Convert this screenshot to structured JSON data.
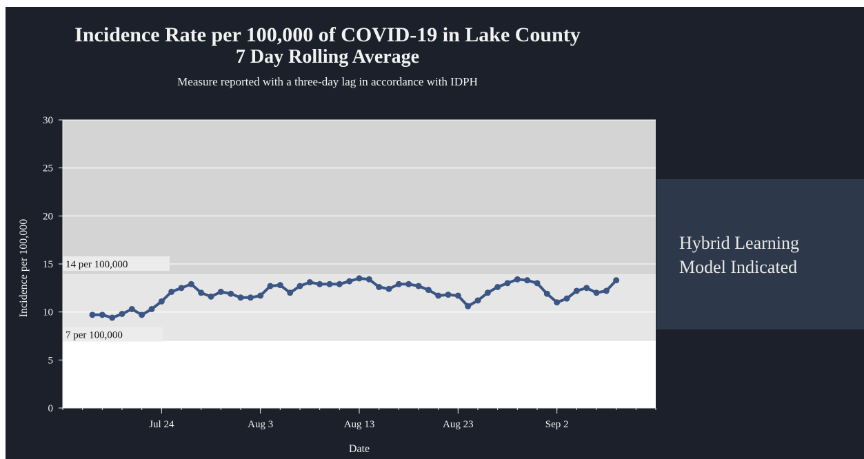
{
  "title": {
    "line1": "Incidence Rate per 100,000 of COVID-19 in Lake County",
    "line2": "7 Day Rolling Average",
    "subtitle": "Measure reported with a three-day lag in accordance with IDPH"
  },
  "side_panel": {
    "text": "Hybrid Learning\nModel Indicated"
  },
  "colors": {
    "page_background": "#1c202a",
    "side_panel": "#2d394a",
    "band_high": "#d4d4d4",
    "band_mid": "#e6e6e6",
    "band_low": "#ffffff",
    "series": "#3b5584"
  },
  "chart_data": {
    "type": "line",
    "xlabel": "Date",
    "ylabel": "Incidence per 100,000",
    "ylim": [
      0,
      30
    ],
    "yticks": [
      0,
      5,
      10,
      15,
      20,
      25,
      30
    ],
    "xlim": [
      "2020-07-14",
      "2020-09-12"
    ],
    "xticks": [
      {
        "date": "2020-07-24",
        "label": "Jul 24"
      },
      {
        "date": "2020-08-03",
        "label": "Aug 3"
      },
      {
        "date": "2020-08-13",
        "label": "Aug 13"
      },
      {
        "date": "2020-08-23",
        "label": "Aug 23"
      },
      {
        "date": "2020-09-02",
        "label": "Sep 2"
      }
    ],
    "grid": true,
    "thresholds": [
      {
        "value": 14,
        "label": "14 per 100,000"
      },
      {
        "value": 7,
        "label": "7 per 100,000"
      }
    ],
    "series": [
      {
        "x": [
          "2020-07-17",
          "2020-07-18",
          "2020-07-19",
          "2020-07-20",
          "2020-07-21",
          "2020-07-22",
          "2020-07-23",
          "2020-07-24",
          "2020-07-25",
          "2020-07-26",
          "2020-07-27",
          "2020-07-28",
          "2020-07-29",
          "2020-07-30",
          "2020-07-31",
          "2020-08-01",
          "2020-08-02",
          "2020-08-03",
          "2020-08-04",
          "2020-08-05",
          "2020-08-06",
          "2020-08-07",
          "2020-08-08",
          "2020-08-09",
          "2020-08-10",
          "2020-08-11",
          "2020-08-12",
          "2020-08-13",
          "2020-08-14",
          "2020-08-15",
          "2020-08-16",
          "2020-08-17",
          "2020-08-18",
          "2020-08-19",
          "2020-08-20",
          "2020-08-21",
          "2020-08-22",
          "2020-08-23",
          "2020-08-24",
          "2020-08-25",
          "2020-08-26",
          "2020-08-27",
          "2020-08-28",
          "2020-08-29",
          "2020-08-30",
          "2020-08-31",
          "2020-09-01",
          "2020-09-02",
          "2020-09-03",
          "2020-09-04",
          "2020-09-05",
          "2020-09-06",
          "2020-09-07",
          "2020-09-08"
        ],
        "values": [
          9.7,
          9.7,
          9.4,
          9.8,
          10.3,
          9.7,
          10.3,
          11.1,
          12.1,
          12.5,
          12.9,
          12.0,
          11.6,
          12.1,
          11.9,
          11.5,
          11.5,
          11.7,
          12.7,
          12.8,
          12.0,
          12.7,
          13.1,
          12.9,
          12.9,
          12.9,
          13.2,
          13.5,
          13.4,
          12.6,
          12.4,
          12.9,
          12.9,
          12.7,
          12.3,
          11.7,
          11.8,
          11.7,
          10.6,
          11.2,
          12.0,
          12.6,
          13.0,
          13.4,
          13.3,
          13.0,
          11.9,
          11.0,
          11.4,
          12.2,
          12.5,
          12.0,
          12.2,
          13.3
        ]
      }
    ]
  }
}
